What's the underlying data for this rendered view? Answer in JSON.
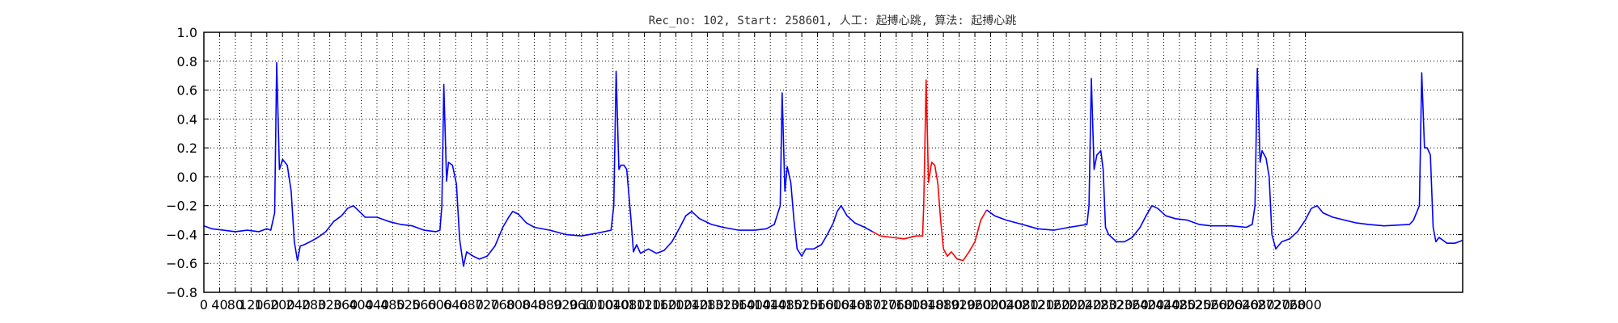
{
  "chart_data": {
    "type": "line",
    "title": "Rec_no: 102, Start: 258601, 人工: 起搏心跳, 算法: 起搏心跳",
    "xlabel": "",
    "ylabel": "",
    "xlim": [
      0,
      3200
    ],
    "ylim": [
      -0.8,
      1.0
    ],
    "grid": true,
    "y_ticks": [
      1.0,
      0.8,
      0.6,
      0.4,
      0.2,
      0.0,
      -0.2,
      -0.4,
      -0.6,
      -0.8
    ],
    "y_tick_labels": [
      "1.0",
      "0.8",
      "0.6",
      "0.4",
      "0.2",
      "0.0",
      "−0.2",
      "−0.4",
      "−0.6",
      "−0.8"
    ],
    "x_ticks": [
      0,
      40,
      80,
      120,
      160,
      200,
      240,
      280,
      320,
      360,
      400,
      440,
      480,
      520,
      560,
      600,
      640,
      680,
      720,
      760,
      800,
      840,
      880,
      920,
      960,
      1000,
      1040,
      1080,
      1120,
      1160,
      1200,
      1240,
      1280,
      1320,
      1360,
      1400,
      1440,
      1480,
      1520,
      1560,
      1600,
      1640,
      1680,
      1720,
      1760,
      1800,
      1840,
      1880,
      1920,
      1960,
      2000,
      2040,
      2080,
      2120,
      2160,
      2200,
      2240,
      2280,
      2320,
      2360,
      2400,
      2440,
      2480,
      2520,
      2560,
      2600,
      2640,
      2680,
      2720,
      2760,
      2800
    ],
    "x_tick_labels": [
      "0",
      "40",
      "80",
      "120",
      "160",
      "200",
      "240",
      "280",
      "320",
      "360",
      "400",
      "440",
      "480",
      "520",
      "560",
      "600",
      "640",
      "680",
      "720",
      "760",
      "800",
      "840",
      "880",
      "920",
      "960",
      "1000",
      "1040",
      "1080",
      "1120",
      "1160",
      "1200",
      "1240",
      "1280",
      "1320",
      "1360",
      "1400",
      "1440",
      "1480",
      "1520",
      "1560",
      "1600",
      "1640",
      "1680",
      "1720",
      "1760",
      "1800",
      "1840",
      "1880",
      "1920",
      "1960",
      "2000",
      "2040",
      "2080",
      "2120",
      "2160",
      "2200",
      "2240",
      "2280",
      "2320",
      "2360",
      "2400",
      "2440",
      "2480",
      "2520",
      "2560",
      "2600",
      "2640",
      "2680",
      "2720",
      "2760",
      "2800"
    ],
    "series": [
      {
        "color": "#0000ff",
        "segments": [
          [
            [
              0,
              -0.34
            ],
            [
              20,
              -0.36
            ],
            [
              50,
              -0.37
            ],
            [
              80,
              -0.38
            ],
            [
              110,
              -0.37
            ],
            [
              140,
              -0.38
            ],
            [
              160,
              -0.36
            ],
            [
              170,
              -0.37
            ],
            [
              180,
              -0.25
            ],
            [
              185,
              0.79
            ],
            [
              192,
              0.05
            ],
            [
              200,
              0.12
            ],
            [
              212,
              0.08
            ],
            [
              222,
              -0.1
            ],
            [
              230,
              -0.45
            ],
            [
              238,
              -0.58
            ],
            [
              245,
              -0.48
            ],
            [
              255,
              -0.47
            ],
            [
              270,
              -0.45
            ],
            [
              290,
              -0.42
            ],
            [
              310,
              -0.38
            ],
            [
              330,
              -0.31
            ],
            [
              350,
              -0.27
            ],
            [
              365,
              -0.22
            ],
            [
              380,
              -0.2
            ],
            [
              395,
              -0.24
            ],
            [
              410,
              -0.28
            ],
            [
              440,
              -0.28
            ],
            [
              470,
              -0.31
            ],
            [
              500,
              -0.33
            ],
            [
              530,
              -0.34
            ],
            [
              560,
              -0.37
            ],
            [
              590,
              -0.38
            ],
            [
              600,
              -0.37
            ],
            [
              605,
              -0.2
            ],
            [
              610,
              0.64
            ],
            [
              617,
              -0.03
            ],
            [
              622,
              0.1
            ],
            [
              632,
              0.08
            ],
            [
              642,
              -0.05
            ],
            [
              650,
              -0.43
            ],
            [
              660,
              -0.62
            ],
            [
              668,
              -0.52
            ],
            [
              685,
              -0.55
            ],
            [
              700,
              -0.57
            ],
            [
              720,
              -0.55
            ],
            [
              740,
              -0.48
            ],
            [
              760,
              -0.35
            ],
            [
              775,
              -0.28
            ],
            [
              785,
              -0.24
            ],
            [
              800,
              -0.26
            ],
            [
              820,
              -0.32
            ],
            [
              840,
              -0.35
            ],
            [
              880,
              -0.37
            ],
            [
              920,
              -0.4
            ],
            [
              960,
              -0.41
            ],
            [
              1000,
              -0.39
            ],
            [
              1035,
              -0.37
            ],
            [
              1042,
              -0.2
            ],
            [
              1048,
              0.73
            ],
            [
              1055,
              0.05
            ],
            [
              1060,
              0.08
            ],
            [
              1068,
              0.08
            ],
            [
              1075,
              0.05
            ],
            [
              1085,
              -0.27
            ],
            [
              1092,
              -0.52
            ],
            [
              1100,
              -0.47
            ],
            [
              1110,
              -0.53
            ],
            [
              1130,
              -0.5
            ],
            [
              1150,
              -0.53
            ],
            [
              1170,
              -0.51
            ],
            [
              1190,
              -0.45
            ],
            [
              1210,
              -0.35
            ],
            [
              1225,
              -0.27
            ],
            [
              1240,
              -0.24
            ],
            [
              1260,
              -0.29
            ],
            [
              1290,
              -0.33
            ],
            [
              1320,
              -0.35
            ],
            [
              1360,
              -0.37
            ],
            [
              1400,
              -0.37
            ],
            [
              1430,
              -0.36
            ],
            [
              1450,
              -0.33
            ],
            [
              1465,
              -0.2
            ],
            [
              1470,
              0.58
            ],
            [
              1477,
              -0.1
            ],
            [
              1483,
              0.07
            ],
            [
              1492,
              -0.04
            ],
            [
              1500,
              -0.3
            ],
            [
              1508,
              -0.5
            ],
            [
              1520,
              -0.55
            ],
            [
              1530,
              -0.5
            ],
            [
              1550,
              -0.5
            ],
            [
              1570,
              -0.47
            ],
            [
              1585,
              -0.4
            ],
            [
              1600,
              -0.32
            ],
            [
              1610,
              -0.24
            ],
            [
              1620,
              -0.2
            ],
            [
              1635,
              -0.27
            ],
            [
              1655,
              -0.32
            ],
            [
              1680,
              -0.35
            ],
            [
              1700,
              -0.38
            ]
          ]
        ]
      },
      {
        "color": "#ff0000",
        "segments": [
          [
            [
              1700,
              -0.38
            ],
            [
              1720,
              -0.41
            ],
            [
              1750,
              -0.42
            ],
            [
              1780,
              -0.43
            ],
            [
              1810,
              -0.41
            ],
            [
              1827,
              -0.41
            ],
            [
              1830,
              -0.2
            ],
            [
              1836,
              0.67
            ],
            [
              1842,
              -0.04
            ],
            [
              1850,
              0.1
            ],
            [
              1858,
              0.08
            ],
            [
              1866,
              -0.05
            ],
            [
              1873,
              -0.3
            ],
            [
              1880,
              -0.5
            ],
            [
              1890,
              -0.55
            ],
            [
              1900,
              -0.52
            ],
            [
              1915,
              -0.57
            ],
            [
              1930,
              -0.58
            ],
            [
              1945,
              -0.52
            ],
            [
              1960,
              -0.45
            ],
            [
              1975,
              -0.3
            ],
            [
              1990,
              -0.23
            ]
          ]
        ]
      },
      {
        "color": "#0000ff",
        "segments": [
          [
            [
              1990,
              -0.23
            ],
            [
              2010,
              -0.27
            ],
            [
              2040,
              -0.3
            ],
            [
              2080,
              -0.33
            ],
            [
              2120,
              -0.36
            ],
            [
              2160,
              -0.37
            ],
            [
              2200,
              -0.35
            ],
            [
              2245,
              -0.33
            ],
            [
              2250,
              -0.2
            ],
            [
              2256,
              0.68
            ],
            [
              2263,
              0.05
            ],
            [
              2270,
              0.15
            ],
            [
              2280,
              0.18
            ],
            [
              2286,
              0.05
            ],
            [
              2292,
              -0.35
            ],
            [
              2300,
              -0.4
            ],
            [
              2320,
              -0.45
            ],
            [
              2340,
              -0.45
            ],
            [
              2360,
              -0.42
            ],
            [
              2380,
              -0.35
            ],
            [
              2395,
              -0.27
            ],
            [
              2410,
              -0.2
            ],
            [
              2425,
              -0.22
            ],
            [
              2445,
              -0.27
            ],
            [
              2470,
              -0.29
            ],
            [
              2500,
              -0.3
            ],
            [
              2530,
              -0.33
            ],
            [
              2560,
              -0.34
            ],
            [
              2610,
              -0.34
            ],
            [
              2650,
              -0.35
            ],
            [
              2665,
              -0.33
            ],
            [
              2672,
              -0.2
            ],
            [
              2678,
              0.75
            ],
            [
              2685,
              0.1
            ],
            [
              2690,
              0.18
            ],
            [
              2700,
              0.13
            ],
            [
              2708,
              0.0
            ],
            [
              2715,
              -0.4
            ],
            [
              2725,
              -0.5
            ],
            [
              2740,
              -0.45
            ],
            [
              2760,
              -0.43
            ],
            [
              2780,
              -0.38
            ],
            [
              2800,
              -0.3
            ],
            [
              2815,
              -0.22
            ],
            [
              2830,
              -0.2
            ],
            [
              2845,
              -0.25
            ],
            [
              2870,
              -0.28
            ],
            [
              2900,
              -0.3
            ],
            [
              2930,
              -0.32
            ],
            [
              2960,
              -0.33
            ],
            [
              3000,
              -0.34
            ],
            [
              3065,
              -0.33
            ],
            [
              3075,
              -0.3
            ],
            [
              3090,
              -0.2
            ],
            [
              3096,
              0.72
            ],
            [
              3103,
              0.2
            ],
            [
              3110,
              0.2
            ],
            [
              3118,
              0.15
            ],
            [
              3125,
              -0.35
            ],
            [
              3132,
              -0.45
            ],
            [
              3140,
              -0.42
            ],
            [
              3160,
              -0.46
            ],
            [
              3180,
              -0.46
            ],
            [
              3200,
              -0.44
            ]
          ]
        ]
      }
    ]
  }
}
